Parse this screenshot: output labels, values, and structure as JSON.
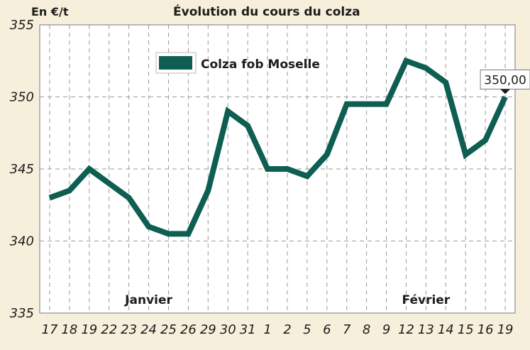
{
  "chart_data": {
    "type": "line",
    "title": "Évolution du cours du colza",
    "ylabel": "En €/t",
    "xlabel": "",
    "ylim": [
      335,
      355
    ],
    "yticks": [
      335,
      340,
      345,
      350,
      355
    ],
    "grid": true,
    "legend_position": "top-left",
    "categories": [
      "17",
      "18",
      "19",
      "22",
      "23",
      "24",
      "25",
      "26",
      "29",
      "30",
      "31",
      "1",
      "2",
      "5",
      "6",
      "7",
      "8",
      "9",
      "12",
      "13",
      "14",
      "15",
      "16",
      "19"
    ],
    "series": [
      {
        "name": "Colza fob Moselle",
        "color": "#0e5e52",
        "values": [
          343,
          343.5,
          345,
          344,
          343,
          341,
          340.5,
          340.5,
          343.5,
          349,
          348,
          345,
          345,
          344.5,
          346,
          349.5,
          349.5,
          349.5,
          352.5,
          352,
          351,
          346,
          347,
          350
        ]
      }
    ],
    "annotations": [
      {
        "text": "Janvier",
        "category_index": 5
      },
      {
        "text": "Février",
        "category_index": 19
      },
      {
        "text": "350,00",
        "category_index": 23,
        "value": 350
      }
    ]
  }
}
